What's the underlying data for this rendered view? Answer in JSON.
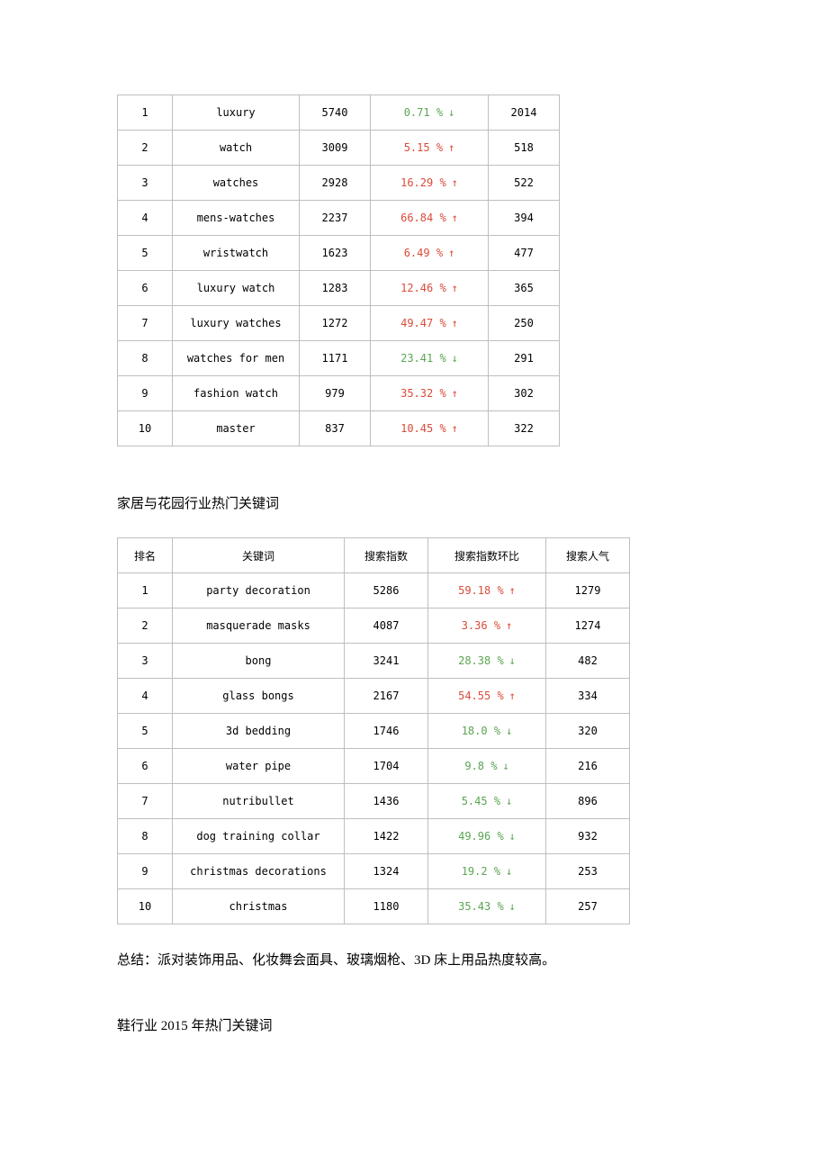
{
  "tables": {
    "watches": {
      "rows": [
        {
          "rank": "1",
          "keyword": "luxury",
          "index": "5740",
          "pct": "0.71 %",
          "dir": "down",
          "pop": "2014"
        },
        {
          "rank": "2",
          "keyword": "watch",
          "index": "3009",
          "pct": "5.15 %",
          "dir": "up",
          "pop": "518"
        },
        {
          "rank": "3",
          "keyword": "watches",
          "index": "2928",
          "pct": "16.29 %",
          "dir": "up",
          "pop": "522"
        },
        {
          "rank": "4",
          "keyword": "mens-watches",
          "index": "2237",
          "pct": "66.84 %",
          "dir": "up",
          "pop": "394"
        },
        {
          "rank": "5",
          "keyword": "wristwatch",
          "index": "1623",
          "pct": "6.49 %",
          "dir": "up",
          "pop": "477"
        },
        {
          "rank": "6",
          "keyword": "luxury watch",
          "index": "1283",
          "pct": "12.46 %",
          "dir": "up",
          "pop": "365"
        },
        {
          "rank": "7",
          "keyword": "luxury watches",
          "index": "1272",
          "pct": "49.47 %",
          "dir": "up",
          "pop": "250"
        },
        {
          "rank": "8",
          "keyword": "watches for men",
          "index": "1171",
          "pct": "23.41 %",
          "dir": "down",
          "pop": "291"
        },
        {
          "rank": "9",
          "keyword": "fashion watch",
          "index": "979",
          "pct": "35.32 %",
          "dir": "up",
          "pop": "302"
        },
        {
          "rank": "10",
          "keyword": "master",
          "index": "837",
          "pct": "10.45 %",
          "dir": "up",
          "pop": "322"
        }
      ]
    },
    "homegarden": {
      "title": "家居与花园行业热门关键词",
      "headers": {
        "rank": "排名",
        "keyword": "关键词",
        "index": "搜索指数",
        "pct": "搜索指数环比",
        "pop": "搜索人气"
      },
      "rows": [
        {
          "rank": "1",
          "keyword": "party decoration",
          "index": "5286",
          "pct": "59.18 %",
          "dir": "up",
          "pop": "1279"
        },
        {
          "rank": "2",
          "keyword": "masquerade masks",
          "index": "4087",
          "pct": "3.36 %",
          "dir": "up",
          "pop": "1274"
        },
        {
          "rank": "3",
          "keyword": "bong",
          "index": "3241",
          "pct": "28.38 %",
          "dir": "down",
          "pop": "482"
        },
        {
          "rank": "4",
          "keyword": "glass bongs",
          "index": "2167",
          "pct": "54.55 %",
          "dir": "up",
          "pop": "334"
        },
        {
          "rank": "5",
          "keyword": "3d bedding",
          "index": "1746",
          "pct": "18.0 %",
          "dir": "down",
          "pop": "320"
        },
        {
          "rank": "6",
          "keyword": "water pipe",
          "index": "1704",
          "pct": "9.8 %",
          "dir": "down",
          "pop": "216"
        },
        {
          "rank": "7",
          "keyword": "nutribullet",
          "index": "1436",
          "pct": "5.45 %",
          "dir": "down",
          "pop": "896"
        },
        {
          "rank": "8",
          "keyword": "dog training collar",
          "index": "1422",
          "pct": "49.96 %",
          "dir": "down",
          "pop": "932"
        },
        {
          "rank": "9",
          "keyword": "christmas decorations",
          "index": "1324",
          "pct": "19.2 %",
          "dir": "down",
          "pop": "253"
        },
        {
          "rank": "10",
          "keyword": "christmas",
          "index": "1180",
          "pct": "35.43 %",
          "dir": "down",
          "pop": "257"
        }
      ]
    }
  },
  "summary": "总结：派对装饰用品、化妆舞会面具、玻璃烟枪、3D 床上用品热度较高。",
  "next_title": "鞋行业 2015 年热门关键词",
  "arrows": {
    "up": "↑",
    "down": "↓"
  },
  "colors": {
    "up": "#d94b3a",
    "down": "#5aa552",
    "border": "#bfbfbf",
    "background": "#ffffff",
    "text": "#000000"
  }
}
